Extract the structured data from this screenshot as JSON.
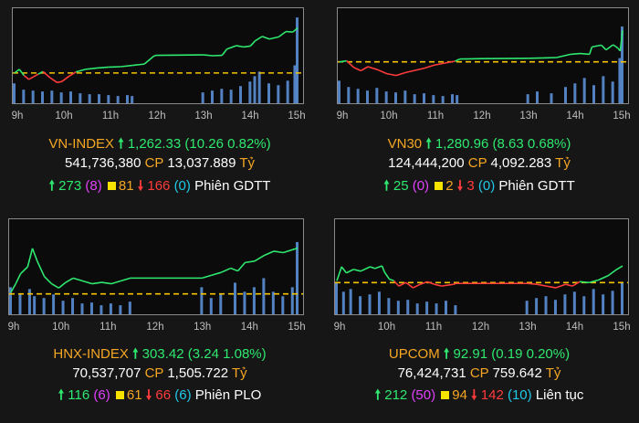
{
  "colors": {
    "up": "#2ee86f",
    "down": "#ff3b3b",
    "ref": "#f5c400",
    "volume": "#5b8fd6",
    "name": "#f5a623",
    "unchanged": "#f7e300",
    "ceiling": "#e040fb",
    "floor": "#22c8e8"
  },
  "icons": {
    "up": "arrow-up-icon",
    "down": "arrow-down-icon",
    "unchanged": "square-icon"
  },
  "chart_data": [
    {
      "type": "line",
      "title": "VN-INDEX",
      "x_ticks": [
        "9h",
        "10h",
        "11h",
        "12h",
        "13h",
        "14h",
        "15h"
      ],
      "x_range": [
        9,
        15
      ],
      "reference": 1252.07,
      "ylim": [
        1246,
        1266
      ],
      "price": [
        [
          9.0,
          1252.1
        ],
        [
          9.1,
          1252.9
        ],
        [
          9.2,
          1251.5
        ],
        [
          9.3,
          1250.6
        ],
        [
          9.4,
          1251.2
        ],
        [
          9.5,
          1251.8
        ],
        [
          9.6,
          1252.4
        ],
        [
          9.75,
          1251.0
        ],
        [
          9.9,
          1249.9
        ],
        [
          10.0,
          1250.1
        ],
        [
          10.15,
          1251.3
        ],
        [
          10.3,
          1252.3
        ],
        [
          10.5,
          1252.9
        ],
        [
          10.75,
          1253.2
        ],
        [
          11.0,
          1253.4
        ],
        [
          11.25,
          1253.5
        ],
        [
          11.5,
          1253.8
        ],
        [
          11.75,
          1254.1
        ],
        [
          11.95,
          1255.9
        ],
        [
          12.0,
          1256.1
        ],
        [
          13.0,
          1256.2
        ],
        [
          13.2,
          1256.0
        ],
        [
          13.4,
          1256.1
        ],
        [
          13.5,
          1257.5
        ],
        [
          13.7,
          1258.3
        ],
        [
          13.85,
          1258.0
        ],
        [
          14.0,
          1258.2
        ],
        [
          14.1,
          1259.4
        ],
        [
          14.25,
          1260.4
        ],
        [
          14.4,
          1259.8
        ],
        [
          14.6,
          1260.3
        ],
        [
          14.75,
          1261.5
        ],
        [
          14.9,
          1261.4
        ],
        [
          15.0,
          1262.33
        ]
      ],
      "volume": [
        [
          9.0,
          0.22
        ],
        [
          9.2,
          0.15
        ],
        [
          9.4,
          0.14
        ],
        [
          9.6,
          0.13
        ],
        [
          9.8,
          0.14
        ],
        [
          10.0,
          0.12
        ],
        [
          10.2,
          0.13
        ],
        [
          10.4,
          0.11
        ],
        [
          10.6,
          0.1
        ],
        [
          10.8,
          0.1
        ],
        [
          11.0,
          0.09
        ],
        [
          11.2,
          0.08
        ],
        [
          11.4,
          0.09
        ],
        [
          11.5,
          0.08
        ],
        [
          13.0,
          0.12
        ],
        [
          13.2,
          0.14
        ],
        [
          13.4,
          0.16
        ],
        [
          13.6,
          0.15
        ],
        [
          13.8,
          0.19
        ],
        [
          14.0,
          0.24
        ],
        [
          14.1,
          0.3
        ],
        [
          14.2,
          0.35
        ],
        [
          14.4,
          0.22
        ],
        [
          14.6,
          0.2
        ],
        [
          14.8,
          0.25
        ],
        [
          14.95,
          0.42
        ],
        [
          15.0,
          0.95
        ]
      ],
      "name": "VN-INDEX",
      "value": "1,262.33",
      "change": "(10.26 0.82%)",
      "volume_text": "541,736,380",
      "cp_label": "CP",
      "turnover": "13,037.889",
      "unit": "Tỷ",
      "advances": "273",
      "ceiling": "(8)",
      "unchanged": "81",
      "declines": "166",
      "floor": "(0)",
      "session": "Phiên GDTT"
    },
    {
      "type": "line",
      "title": "VN30",
      "x_ticks": [
        "9h",
        "10h",
        "11h",
        "12h",
        "13h",
        "14h",
        "15h"
      ],
      "x_range": [
        9,
        15
      ],
      "reference": 1272.33,
      "ylim": [
        1262,
        1286
      ],
      "price": [
        [
          9.0,
          1272.3
        ],
        [
          9.15,
          1272.6
        ],
        [
          9.3,
          1270.8
        ],
        [
          9.45,
          1269.9
        ],
        [
          9.6,
          1271.0
        ],
        [
          9.8,
          1270.2
        ],
        [
          10.0,
          1269.1
        ],
        [
          10.2,
          1268.6
        ],
        [
          10.4,
          1269.4
        ],
        [
          10.6,
          1270.0
        ],
        [
          10.8,
          1270.6
        ],
        [
          11.0,
          1271.4
        ],
        [
          11.2,
          1271.9
        ],
        [
          11.45,
          1272.5
        ],
        [
          11.55,
          1273.1
        ],
        [
          12.0,
          1273.2
        ],
        [
          13.0,
          1273.3
        ],
        [
          13.3,
          1273.4
        ],
        [
          13.6,
          1273.5
        ],
        [
          13.9,
          1274.4
        ],
        [
          14.1,
          1274.6
        ],
        [
          14.3,
          1274.4
        ],
        [
          14.35,
          1276.4
        ],
        [
          14.55,
          1276.9
        ],
        [
          14.65,
          1275.6
        ],
        [
          14.8,
          1277.0
        ],
        [
          14.9,
          1276.1
        ],
        [
          14.95,
          1275.3
        ],
        [
          15.0,
          1280.96
        ]
      ],
      "volume": [
        [
          9.0,
          0.25
        ],
        [
          9.2,
          0.18
        ],
        [
          9.4,
          0.16
        ],
        [
          9.6,
          0.14
        ],
        [
          9.8,
          0.17
        ],
        [
          10.0,
          0.13
        ],
        [
          10.2,
          0.12
        ],
        [
          10.4,
          0.14
        ],
        [
          10.6,
          0.1
        ],
        [
          10.8,
          0.11
        ],
        [
          11.0,
          0.09
        ],
        [
          11.2,
          0.08
        ],
        [
          11.4,
          0.1
        ],
        [
          11.5,
          0.09
        ],
        [
          13.0,
          0.1
        ],
        [
          13.2,
          0.13
        ],
        [
          13.5,
          0.11
        ],
        [
          13.8,
          0.18
        ],
        [
          14.0,
          0.22
        ],
        [
          14.2,
          0.28
        ],
        [
          14.4,
          0.2
        ],
        [
          14.6,
          0.3
        ],
        [
          14.8,
          0.24
        ],
        [
          14.95,
          0.5
        ],
        [
          15.0,
          0.85
        ]
      ],
      "name": "VN30",
      "value": "1,280.96",
      "change": "(8.63 0.68%)",
      "volume_text": "124,444,200",
      "cp_label": "CP",
      "turnover": "4,092.283",
      "unit": "Tỷ",
      "advances": "25",
      "ceiling": "(0)",
      "unchanged": "2",
      "declines": "3",
      "floor": "(0)",
      "session": "Phiên GDTT"
    },
    {
      "type": "line",
      "title": "HNX-INDEX",
      "x_ticks": [
        "9h",
        "10h",
        "11h",
        "12h",
        "13h",
        "14h",
        "15h"
      ],
      "x_range": [
        9,
        15
      ],
      "reference": 300.18,
      "ylim": [
        299.0,
        305.2
      ],
      "price": [
        [
          9.0,
          300.3
        ],
        [
          9.1,
          300.9
        ],
        [
          9.2,
          301.6
        ],
        [
          9.35,
          302.1
        ],
        [
          9.45,
          303.4
        ],
        [
          9.55,
          302.5
        ],
        [
          9.7,
          301.4
        ],
        [
          9.85,
          300.9
        ],
        [
          10.0,
          300.6
        ],
        [
          10.15,
          301.0
        ],
        [
          10.3,
          301.3
        ],
        [
          10.5,
          301.1
        ],
        [
          10.7,
          300.9
        ],
        [
          10.9,
          301.0
        ],
        [
          11.1,
          300.9
        ],
        [
          11.3,
          301.1
        ],
        [
          11.5,
          301.3
        ],
        [
          12.0,
          301.3
        ],
        [
          13.0,
          301.3
        ],
        [
          13.2,
          301.5
        ],
        [
          13.4,
          301.7
        ],
        [
          13.6,
          302.0
        ],
        [
          13.75,
          301.8
        ],
        [
          13.9,
          302.4
        ],
        [
          14.1,
          302.5
        ],
        [
          14.3,
          302.9
        ],
        [
          14.5,
          303.2
        ],
        [
          14.7,
          303.1
        ],
        [
          15.0,
          303.42
        ]
      ],
      "volume": [
        [
          9.0,
          0.3
        ],
        [
          9.2,
          0.22
        ],
        [
          9.4,
          0.28
        ],
        [
          9.5,
          0.2
        ],
        [
          9.7,
          0.18
        ],
        [
          9.9,
          0.22
        ],
        [
          10.1,
          0.15
        ],
        [
          10.3,
          0.18
        ],
        [
          10.5,
          0.12
        ],
        [
          10.7,
          0.13
        ],
        [
          10.9,
          0.1
        ],
        [
          11.1,
          0.12
        ],
        [
          11.3,
          0.1
        ],
        [
          11.5,
          0.14
        ],
        [
          13.0,
          0.3
        ],
        [
          13.2,
          0.18
        ],
        [
          13.4,
          0.22
        ],
        [
          13.7,
          0.35
        ],
        [
          13.9,
          0.25
        ],
        [
          14.1,
          0.3
        ],
        [
          14.3,
          0.4
        ],
        [
          14.5,
          0.25
        ],
        [
          14.7,
          0.2
        ],
        [
          14.9,
          0.3
        ],
        [
          15.0,
          0.8
        ]
      ],
      "name": "HNX-INDEX",
      "value": "303.42",
      "change": "(3.24 1.08%)",
      "volume_text": "70,537,707",
      "cp_label": "CP",
      "turnover": "1,505.722",
      "unit": "Tỷ",
      "advances": "116",
      "ceiling": "(6)",
      "unchanged": "61",
      "declines": "66",
      "floor": "(6)",
      "session": "Phiên PLO"
    },
    {
      "type": "line",
      "title": "UPCOM",
      "x_ticks": [
        "9h",
        "10h",
        "11h",
        "12h",
        "13h",
        "14h",
        "15h"
      ],
      "x_range": [
        9,
        15
      ],
      "reference": 92.72,
      "ylim": [
        92.4,
        93.4
      ],
      "price": [
        [
          9.0,
          92.74
        ],
        [
          9.1,
          92.9
        ],
        [
          9.2,
          92.83
        ],
        [
          9.35,
          92.87
        ],
        [
          9.5,
          92.85
        ],
        [
          9.7,
          92.9
        ],
        [
          9.8,
          92.88
        ],
        [
          9.95,
          92.91
        ],
        [
          10.0,
          92.84
        ],
        [
          10.1,
          92.76
        ],
        [
          10.2,
          92.74
        ],
        [
          10.3,
          92.68
        ],
        [
          10.45,
          92.72
        ],
        [
          10.6,
          92.66
        ],
        [
          10.75,
          92.7
        ],
        [
          10.9,
          92.73
        ],
        [
          11.05,
          92.7
        ],
        [
          11.2,
          92.68
        ],
        [
          11.45,
          92.7
        ],
        [
          11.5,
          92.71
        ],
        [
          12.0,
          92.71
        ],
        [
          13.0,
          92.71
        ],
        [
          13.2,
          92.7
        ],
        [
          13.4,
          92.68
        ],
        [
          13.6,
          92.66
        ],
        [
          13.8,
          92.7
        ],
        [
          13.95,
          92.68
        ],
        [
          14.1,
          92.73
        ],
        [
          14.3,
          92.72
        ],
        [
          14.5,
          92.75
        ],
        [
          14.7,
          92.8
        ],
        [
          14.85,
          92.86
        ],
        [
          15.0,
          92.91
        ]
      ],
      "volume": [
        [
          9.0,
          0.35
        ],
        [
          9.15,
          0.25
        ],
        [
          9.3,
          0.28
        ],
        [
          9.5,
          0.2
        ],
        [
          9.7,
          0.22
        ],
        [
          9.9,
          0.25
        ],
        [
          10.1,
          0.18
        ],
        [
          10.3,
          0.15
        ],
        [
          10.5,
          0.16
        ],
        [
          10.7,
          0.12
        ],
        [
          10.9,
          0.14
        ],
        [
          11.1,
          0.12
        ],
        [
          11.3,
          0.15
        ],
        [
          11.5,
          0.1
        ],
        [
          13.0,
          0.15
        ],
        [
          13.2,
          0.18
        ],
        [
          13.4,
          0.2
        ],
        [
          13.6,
          0.16
        ],
        [
          13.8,
          0.22
        ],
        [
          14.0,
          0.25
        ],
        [
          14.2,
          0.2
        ],
        [
          14.4,
          0.28
        ],
        [
          14.6,
          0.22
        ],
        [
          14.8,
          0.26
        ],
        [
          15.0,
          0.35
        ]
      ],
      "name": "UPCOM",
      "value": "92.91",
      "change": "(0.19 0.20%)",
      "volume_text": "76,424,731",
      "cp_label": "CP",
      "turnover": "759.642",
      "unit": "Tỷ",
      "advances": "212",
      "ceiling": "(50)",
      "unchanged": "94",
      "declines": "142",
      "floor": "(10)",
      "session": "Liên tục"
    }
  ]
}
